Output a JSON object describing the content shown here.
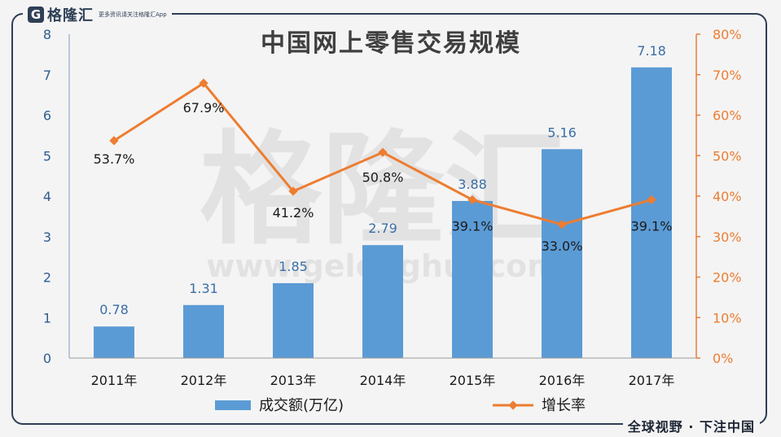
{
  "branding": {
    "logo_text": "格隆汇",
    "logo_tagline": "更多资讯请关注格隆汇App",
    "watermark_text": "格隆汇",
    "watermark_url": "www.gelonghui.com",
    "slogan": "全球视野 · 下注中国"
  },
  "colors": {
    "bar": "#5b9bd5",
    "line": "#ed7d31",
    "frame": "#2e3f56",
    "left_axis_text": "#2e5d8f",
    "right_axis_text": "#ed7d31",
    "bar_label": "#3a6ea5",
    "line_label": "#1a1a1a"
  },
  "chart_data": {
    "type": "bar",
    "title": "中国网上零售交易规模",
    "categories": [
      "2011年",
      "2012年",
      "2013年",
      "2014年",
      "2015年",
      "2016年",
      "2017年"
    ],
    "series": [
      {
        "name": "成交额(万亿)",
        "type": "bar",
        "axis": "left",
        "values": [
          0.78,
          1.31,
          1.85,
          2.79,
          3.88,
          5.16,
          7.18
        ],
        "labels": [
          "0.78",
          "1.31",
          "1.85",
          "2.79",
          "3.88",
          "5.16",
          "7.18"
        ]
      },
      {
        "name": "增长率",
        "type": "line",
        "axis": "right",
        "values": [
          53.7,
          67.9,
          41.2,
          50.8,
          39.1,
          33.0,
          39.1
        ],
        "labels": [
          "53.7%",
          "67.9%",
          "41.2%",
          "50.8%",
          "39.1%",
          "33.0%",
          "39.1%"
        ]
      }
    ],
    "y_left": {
      "lim": [
        0,
        8
      ],
      "ticks": [
        "0",
        "1",
        "2",
        "3",
        "4",
        "5",
        "6",
        "7",
        "8"
      ]
    },
    "y_right": {
      "lim": [
        0,
        80
      ],
      "ticks": [
        "0%",
        "10%",
        "20%",
        "30%",
        "40%",
        "50%",
        "60%",
        "70%",
        "80%"
      ]
    },
    "grid": false,
    "legend_position": "bottom"
  }
}
